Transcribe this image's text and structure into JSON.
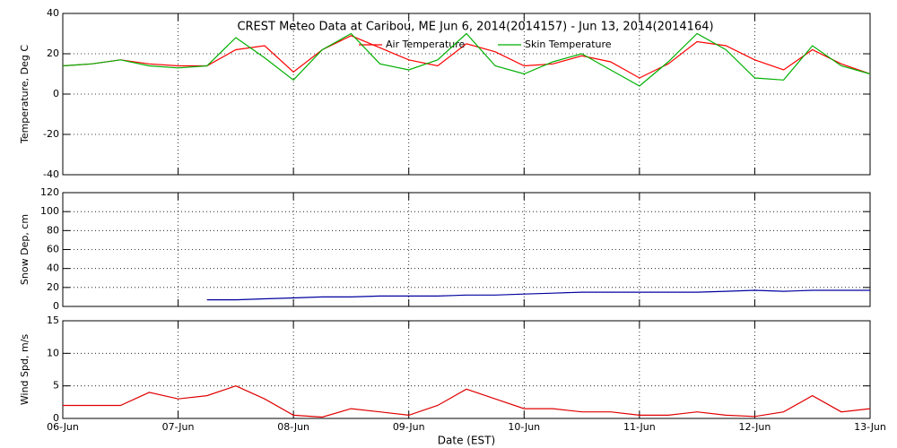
{
  "chart_data": [
    {
      "type": "line",
      "title": "CREST Meteo Data at Caribou, ME   Jun  6, 2014(2014157) - Jun 13, 2014(2014164)",
      "y_label": "Temperature, Deg C",
      "x": [
        0,
        0.25,
        0.5,
        0.75,
        1,
        1.25,
        1.5,
        1.75,
        2,
        2.25,
        2.5,
        2.75,
        3,
        3.25,
        3.5,
        3.75,
        4,
        4.25,
        4.5,
        4.75,
        5,
        5.25,
        5.5,
        5.75,
        6,
        6.25,
        6.5,
        6.75,
        7
      ],
      "xlim": [
        0,
        7
      ],
      "ylim": [
        -40,
        40
      ],
      "yticks": [
        -40,
        -20,
        0,
        20,
        40
      ],
      "grid": true,
      "series": [
        {
          "name": "Air Temperature",
          "color": "#ff0000",
          "values": [
            14,
            15,
            17,
            15,
            14,
            14,
            22,
            24,
            11,
            22,
            29,
            23,
            17,
            14,
            25,
            21,
            14,
            15,
            19,
            16,
            8,
            15,
            26,
            24,
            17,
            12,
            22,
            15,
            10
          ]
        },
        {
          "name": "Skin Temperature",
          "color": "#00b000",
          "values": [
            14,
            15,
            17,
            14,
            13,
            14,
            28,
            18,
            7,
            22,
            30,
            15,
            12,
            17,
            30,
            14,
            10,
            16,
            20,
            12,
            4,
            16,
            30,
            22,
            8,
            7,
            24,
            14,
            10
          ]
        }
      ]
    },
    {
      "type": "line",
      "y_label": "Snow Dep, cm",
      "x": [
        0,
        0.25,
        0.5,
        0.75,
        1,
        1.25,
        1.5,
        1.75,
        2,
        2.25,
        2.5,
        2.75,
        3,
        3.25,
        3.5,
        3.75,
        4,
        4.25,
        4.5,
        4.75,
        5,
        5.25,
        5.5,
        5.75,
        6,
        6.25,
        6.5,
        6.75,
        7
      ],
      "xlim": [
        0,
        7
      ],
      "ylim": [
        0,
        120
      ],
      "yticks": [
        0,
        20,
        40,
        60,
        80,
        100,
        120
      ],
      "grid": true,
      "series": [
        {
          "color": "#0000a0",
          "values": [
            null,
            null,
            null,
            null,
            null,
            7,
            7,
            8,
            9,
            10,
            10,
            11,
            11,
            11,
            12,
            12,
            13,
            14,
            15,
            15,
            15,
            15,
            15,
            16,
            17,
            16,
            17,
            17,
            17
          ]
        }
      ]
    },
    {
      "type": "line",
      "y_label": "Wind Spd, m/s",
      "x_label": "Date (EST)",
      "x": [
        0,
        0.25,
        0.5,
        0.75,
        1,
        1.25,
        1.5,
        1.75,
        2,
        2.25,
        2.5,
        2.75,
        3,
        3.25,
        3.5,
        3.75,
        4,
        4.25,
        4.5,
        4.75,
        5,
        5.25,
        5.5,
        5.75,
        6,
        6.25,
        6.5,
        6.75,
        7
      ],
      "xlim": [
        0,
        7
      ],
      "xticks": [
        {
          "value": 0,
          "label": "06-Jun"
        },
        {
          "value": 1,
          "label": "07-Jun"
        },
        {
          "value": 2,
          "label": "08-Jun"
        },
        {
          "value": 3,
          "label": "09-Jun"
        },
        {
          "value": 4,
          "label": "10-Jun"
        },
        {
          "value": 5,
          "label": "11-Jun"
        },
        {
          "value": 6,
          "label": "12-Jun"
        },
        {
          "value": 7,
          "label": "13-Jun"
        }
      ],
      "ylim": [
        0,
        15
      ],
      "yticks": [
        0,
        5,
        10,
        15
      ],
      "grid": true,
      "series": [
        {
          "color": "#e00000",
          "values": [
            2,
            2,
            2,
            4,
            3,
            3.5,
            5,
            3,
            0.5,
            0.2,
            1.5,
            1,
            0.5,
            2,
            4.5,
            3,
            1.5,
            1.5,
            1,
            1,
            0.5,
            0.5,
            1,
            0.5,
            0.3,
            1,
            3.5,
            1,
            1.5
          ]
        }
      ]
    }
  ]
}
